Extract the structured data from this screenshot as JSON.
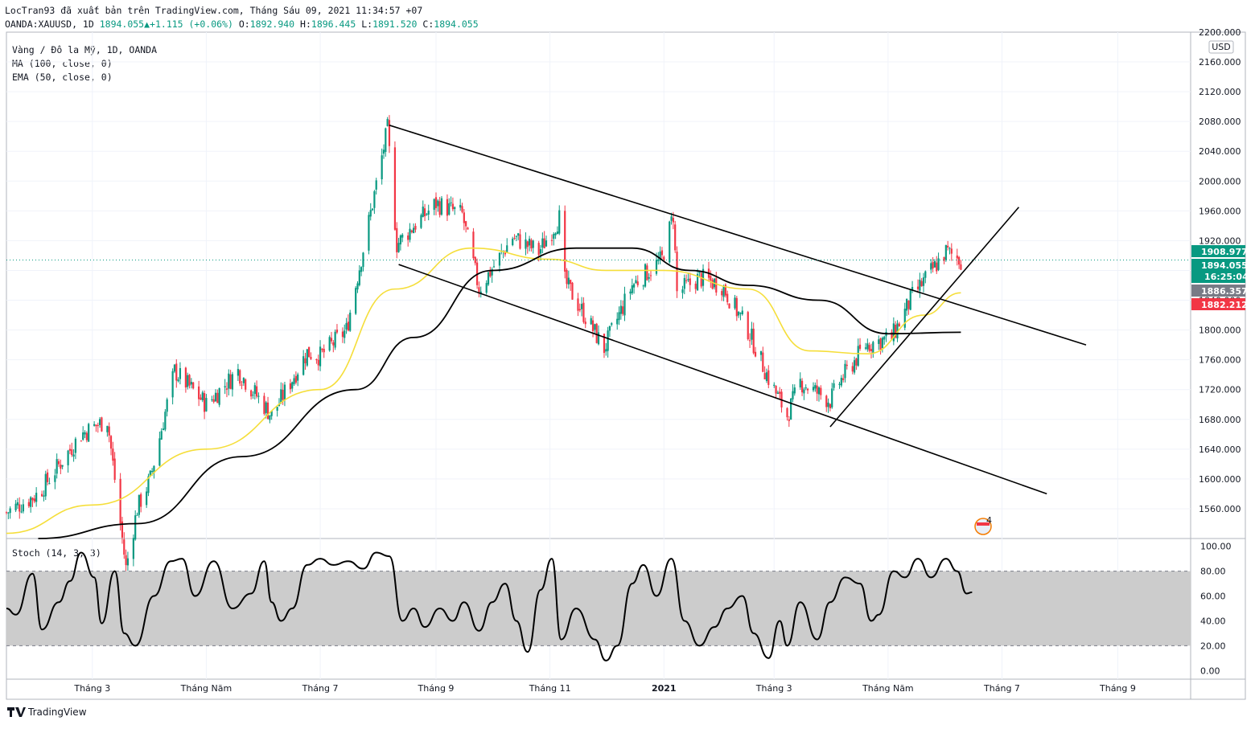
{
  "header": {
    "publish_line": "LocTran93 đã xuất bản trên TradingView.com, Tháng Sáu 09, 2021 11:34:57 +07",
    "symbol": "OANDA:XAUUSD, 1D",
    "last": "1894.055",
    "change": "+1.115 (+0.06%)",
    "o_label": "O:",
    "o_value": "1892.940",
    "h_label": "H:",
    "h_value": "1896.445",
    "l_label": "L:",
    "l_value": "1891.520",
    "c_label": "C:",
    "c_value": "1894.055"
  },
  "legend": {
    "title": "Vàng / Đô la Mỹ, 1D, OANDA",
    "ma": "MA (100, close, 0)",
    "ema": "EMA (50, close, 0)",
    "stoch": "Stoch (14, 3, 3)"
  },
  "colors": {
    "up": "#089981",
    "down": "#f23645",
    "ema": "#f5de3a",
    "ma": "#000000",
    "trendline": "#000000",
    "stoch_band": "#cccccc",
    "last_price_tag": "#089981",
    "high_tag": "#089981",
    "mid_tag": "#787b86",
    "low_tag": "#f23645"
  },
  "price_tags": {
    "high": "1908.977",
    "last": "1894.055",
    "countdown": "16:25:04",
    "mid": "1886.357",
    "low": "1882.212"
  },
  "currency": "USD",
  "badge": "4",
  "footer": {
    "brand": "TradingView"
  },
  "chart_data": [
    {
      "type": "candlestick",
      "ylim": [
        1520,
        2200
      ],
      "y_ticks": [
        "2200.000",
        "2160.000",
        "2120.000",
        "2080.000",
        "2040.000",
        "2000.000",
        "1960.000",
        "1920.000",
        "1880.000",
        "1840.000",
        "1800.000",
        "1760.000",
        "1720.000",
        "1680.000",
        "1640.000",
        "1600.000",
        "1560.000"
      ],
      "y_tick_values": [
        2200,
        2160,
        2120,
        2080,
        2040,
        2000,
        1960,
        1920,
        1880,
        1840,
        1800,
        1760,
        1720,
        1680,
        1640,
        1600,
        1560
      ],
      "x_ticks": [
        "Tháng 3",
        "Tháng Năm",
        "Tháng 7",
        "Tháng 9",
        "Tháng 11",
        "2021",
        "Tháng 3",
        "Tháng Năm",
        "Tháng 7",
        "Tháng 9"
      ],
      "x_tick_dates": [
        "2020-03-01",
        "2020-05-01",
        "2020-07-01",
        "2020-09-01",
        "2020-11-01",
        "2021-01-01",
        "2021-03-01",
        "2021-05-01",
        "2021-07-01",
        "2021-09-01"
      ],
      "x_range": [
        "2020-01-15",
        "2021-10-10"
      ],
      "close_path": [
        [
          "2020-01-15",
          1555
        ],
        [
          "2020-02-01",
          1580
        ],
        [
          "2020-02-24",
          1660
        ],
        [
          "2020-03-09",
          1680
        ],
        [
          "2020-03-19",
          1480
        ],
        [
          "2020-03-25",
          1560
        ],
        [
          "2020-04-01",
          1600
        ],
        [
          "2020-04-14",
          1745
        ],
        [
          "2020-05-01",
          1700
        ],
        [
          "2020-05-18",
          1745
        ],
        [
          "2020-06-05",
          1685
        ],
        [
          "2020-06-24",
          1770
        ],
        [
          "2020-07-01",
          1765
        ],
        [
          "2020-07-15",
          1800
        ],
        [
          "2020-07-27",
          1945
        ],
        [
          "2020-08-06",
          2070
        ],
        [
          "2020-08-11",
          1915
        ],
        [
          "2020-08-20",
          1940
        ],
        [
          "2020-09-01",
          1970
        ],
        [
          "2020-09-15",
          1955
        ],
        [
          "2020-09-24",
          1855
        ],
        [
          "2020-10-12",
          1925
        ],
        [
          "2020-10-26",
          1905
        ],
        [
          "2020-11-06",
          1950
        ],
        [
          "2020-11-09",
          1865
        ],
        [
          "2020-11-30",
          1775
        ],
        [
          "2020-12-15",
          1860
        ],
        [
          "2020-12-31",
          1895
        ],
        [
          "2021-01-06",
          1955
        ],
        [
          "2021-01-08",
          1850
        ],
        [
          "2021-01-20",
          1870
        ],
        [
          "2021-02-01",
          1860
        ],
        [
          "2021-02-15",
          1800
        ],
        [
          "2021-02-26",
          1735
        ],
        [
          "2021-03-08",
          1685
        ],
        [
          "2021-03-15",
          1730
        ],
        [
          "2021-03-31",
          1705
        ],
        [
          "2021-04-05",
          1730
        ],
        [
          "2021-04-19",
          1780
        ],
        [
          "2021-05-03",
          1790
        ],
        [
          "2021-05-14",
          1845
        ],
        [
          "2021-06-01",
          1905
        ],
        [
          "2021-06-09",
          1894
        ]
      ],
      "moving_averages": [
        {
          "name": "EMA (50, close, 0)",
          "points": [
            [
              "2020-01-15",
              1527
            ],
            [
              "2020-03-01",
              1565
            ],
            [
              "2020-05-01",
              1640
            ],
            [
              "2020-07-01",
              1720
            ],
            [
              "2020-08-10",
              1855
            ],
            [
              "2020-09-20",
              1910
            ],
            [
              "2020-11-01",
              1895
            ],
            [
              "2020-12-01",
              1880
            ],
            [
              "2021-01-01",
              1880
            ],
            [
              "2021-02-15",
              1855
            ],
            [
              "2021-03-20",
              1772
            ],
            [
              "2021-04-20",
              1768
            ],
            [
              "2021-05-20",
              1820
            ],
            [
              "2021-06-09",
              1850
            ]
          ]
        },
        {
          "name": "MA (100, close, 0)",
          "points": [
            [
              "2020-02-01",
              1520
            ],
            [
              "2020-03-25",
              1540
            ],
            [
              "2020-05-20",
              1630
            ],
            [
              "2020-07-20",
              1720
            ],
            [
              "2020-08-20",
              1790
            ],
            [
              "2020-10-01",
              1880
            ],
            [
              "2020-11-15",
              1910
            ],
            [
              "2020-12-15",
              1910
            ],
            [
              "2021-01-15",
              1880
            ],
            [
              "2021-02-15",
              1860
            ],
            [
              "2021-03-25",
              1840
            ],
            [
              "2021-05-01",
              1795
            ],
            [
              "2021-06-09",
              1797
            ]
          ]
        }
      ],
      "trendlines": [
        {
          "from": [
            "2020-08-07",
            2075
          ],
          "to": [
            "2021-08-15",
            1780
          ]
        },
        {
          "from": [
            "2020-08-12",
            1888
          ],
          "to": [
            "2021-07-25",
            1580
          ]
        },
        {
          "from": [
            "2021-03-31",
            1670
          ],
          "to": [
            "2021-07-10",
            1965
          ]
        }
      ]
    },
    {
      "type": "line",
      "name": "Stoch (14, 3, 3)",
      "ylim": [
        -5,
        105
      ],
      "y_ticks": [
        "100.00",
        "80.00",
        "60.00",
        "40.00",
        "20.00",
        "0.00"
      ],
      "y_tick_values": [
        100,
        80,
        60,
        40,
        20,
        0
      ],
      "band": [
        20,
        80
      ],
      "points": [
        [
          "2020-01-15",
          50
        ],
        [
          "2020-01-20",
          45
        ],
        [
          "2020-01-29",
          78
        ],
        [
          "2020-02-03",
          33
        ],
        [
          "2020-02-12",
          55
        ],
        [
          "2020-02-18",
          72
        ],
        [
          "2020-02-24",
          95
        ],
        [
          "2020-03-02",
          75
        ],
        [
          "2020-03-06",
          38
        ],
        [
          "2020-03-13",
          80
        ],
        [
          "2020-03-18",
          30
        ],
        [
          "2020-03-24",
          20
        ],
        [
          "2020-04-03",
          60
        ],
        [
          "2020-04-12",
          88
        ],
        [
          "2020-04-18",
          90
        ],
        [
          "2020-04-25",
          60
        ],
        [
          "2020-05-05",
          88
        ],
        [
          "2020-05-15",
          50
        ],
        [
          "2020-05-25",
          62
        ],
        [
          "2020-06-01",
          88
        ],
        [
          "2020-06-05",
          55
        ],
        [
          "2020-06-10",
          40
        ],
        [
          "2020-06-16",
          50
        ],
        [
          "2020-06-24",
          85
        ],
        [
          "2020-07-01",
          90
        ],
        [
          "2020-07-08",
          85
        ],
        [
          "2020-07-16",
          88
        ],
        [
          "2020-07-24",
          82
        ],
        [
          "2020-07-31",
          95
        ],
        [
          "2020-08-07",
          92
        ],
        [
          "2020-08-14",
          40
        ],
        [
          "2020-08-20",
          50
        ],
        [
          "2020-08-26",
          35
        ],
        [
          "2020-09-03",
          50
        ],
        [
          "2020-09-10",
          40
        ],
        [
          "2020-09-16",
          55
        ],
        [
          "2020-09-24",
          32
        ],
        [
          "2020-10-01",
          55
        ],
        [
          "2020-10-08",
          70
        ],
        [
          "2020-10-14",
          40
        ],
        [
          "2020-10-20",
          15
        ],
        [
          "2020-10-27",
          65
        ],
        [
          "2020-11-02",
          90
        ],
        [
          "2020-11-07",
          25
        ],
        [
          "2020-11-15",
          50
        ],
        [
          "2020-11-25",
          25
        ],
        [
          "2020-12-01",
          8
        ],
        [
          "2020-12-07",
          20
        ],
        [
          "2020-12-15",
          70
        ],
        [
          "2020-12-21",
          85
        ],
        [
          "2020-12-28",
          60
        ],
        [
          "2021-01-05",
          90
        ],
        [
          "2021-01-12",
          40
        ],
        [
          "2021-01-20",
          20
        ],
        [
          "2021-01-28",
          35
        ],
        [
          "2021-02-04",
          50
        ],
        [
          "2021-02-12",
          60
        ],
        [
          "2021-02-18",
          30
        ],
        [
          "2021-02-26",
          10
        ],
        [
          "2021-03-04",
          40
        ],
        [
          "2021-03-08",
          20
        ],
        [
          "2021-03-15",
          55
        ],
        [
          "2021-03-24",
          25
        ],
        [
          "2021-03-31",
          55
        ],
        [
          "2021-04-08",
          75
        ],
        [
          "2021-04-16",
          70
        ],
        [
          "2021-04-22",
          40
        ],
        [
          "2021-04-26",
          45
        ],
        [
          "2021-05-04",
          80
        ],
        [
          "2021-05-10",
          75
        ],
        [
          "2021-05-17",
          90
        ],
        [
          "2021-05-24",
          75
        ],
        [
          "2021-06-01",
          90
        ],
        [
          "2021-06-07",
          80
        ],
        [
          "2021-06-12",
          62
        ],
        [
          "2021-06-15",
          63
        ]
      ]
    }
  ]
}
